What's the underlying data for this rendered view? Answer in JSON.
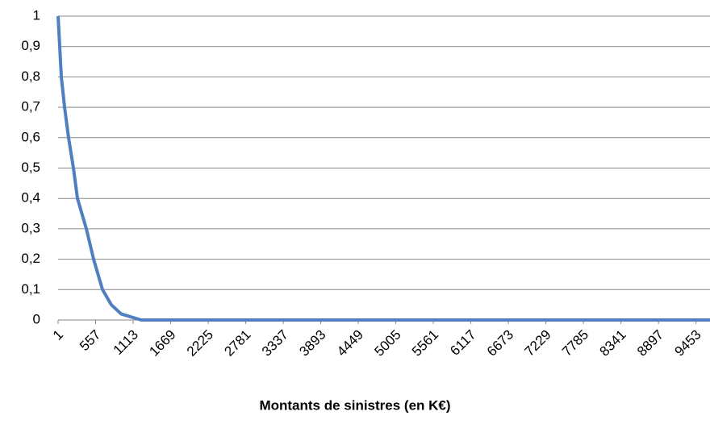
{
  "chart_data": {
    "type": "line",
    "x_label": "Montants de sinistres (en K€)",
    "series": [
      {
        "color": "#4f7fbf",
        "x": [
          1,
          49,
          97,
          156,
          228,
          288,
          420,
          527,
          659,
          790,
          934,
          1233,
          9660
        ],
        "values": [
          1,
          0.8,
          0.7,
          0.6,
          0.5,
          0.4,
          0.3,
          0.2,
          0.1,
          0.05,
          0.02,
          0,
          0
        ]
      }
    ],
    "xlim": [
      1,
      9660
    ],
    "xticks": [
      1,
      557,
      1113,
      1669,
      2225,
      2781,
      3337,
      3893,
      4449,
      5005,
      5561,
      6117,
      6673,
      7229,
      7785,
      8341,
      8897,
      9453
    ],
    "ylim": [
      0,
      1
    ],
    "yticks": [
      0,
      {
        "value": 0.1,
        "label": "0,1"
      },
      {
        "value": 0.2,
        "label": "0,2"
      },
      {
        "value": 0.3,
        "label": "0,3"
      },
      {
        "value": 0.4,
        "label": "0,4"
      },
      {
        "value": 0.5,
        "label": "0,5"
      },
      {
        "value": 0.6,
        "label": "0,6"
      },
      {
        "value": 0.7,
        "label": "0,7"
      },
      {
        "value": 0.8,
        "label": "0,8"
      },
      {
        "value": 0.9,
        "label": "0,9"
      },
      1
    ],
    "grid": true
  }
}
